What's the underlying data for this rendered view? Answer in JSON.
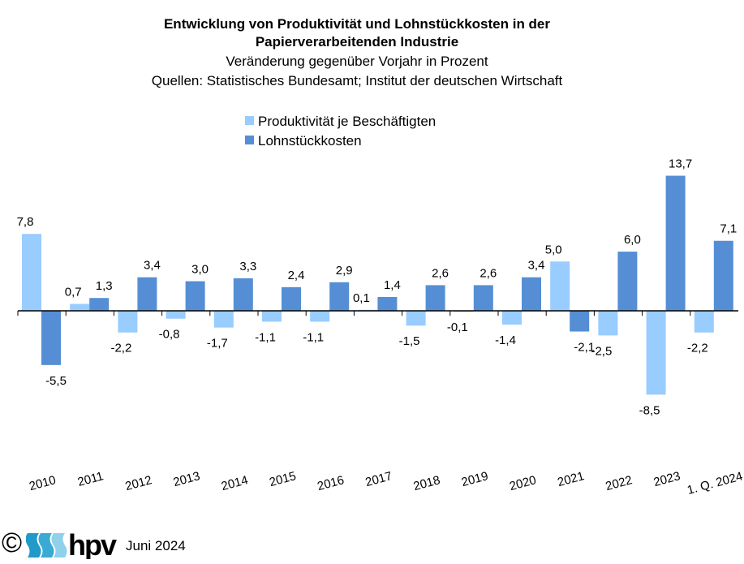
{
  "chart_data": {
    "type": "bar",
    "title_line1": "Entwicklung von Produktivität und Lohnstückkosten in der",
    "title_line2": "Papierverarbeitenden Industrie",
    "subtitle": "Veränderung gegenüber Vorjahr in Prozent",
    "source": "Quellen: Statistisches Bundesamt; Institut der deutschen Wirtschaft",
    "categories": [
      "2010",
      "2011",
      "2012",
      "2013",
      "2014",
      "2015",
      "2016",
      "2017",
      "2018",
      "2019",
      "2020",
      "2021",
      "2022",
      "2023",
      "1. Q. 2024"
    ],
    "series": [
      {
        "name": "Produktivität je Beschäftigten",
        "color": "#99CCFF",
        "values": [
          7.8,
          0.7,
          -2.2,
          -0.8,
          -1.7,
          -1.1,
          -1.1,
          0.1,
          -1.5,
          -0.1,
          -1.4,
          5.0,
          -2.5,
          -8.5,
          -2.2
        ]
      },
      {
        "name": "Lohnstückkosten",
        "color": "#558ED5",
        "values": [
          -5.5,
          1.3,
          3.4,
          3.0,
          3.3,
          2.4,
          2.9,
          1.4,
          2.6,
          2.6,
          3.4,
          -2.1,
          6.0,
          13.7,
          7.1
        ]
      }
    ],
    "legend_position": "top-center",
    "grid": false,
    "decimal_separator": ","
  },
  "footer": {
    "copyright": "©",
    "logo_text": "hpv",
    "date": "Juni 2024"
  }
}
